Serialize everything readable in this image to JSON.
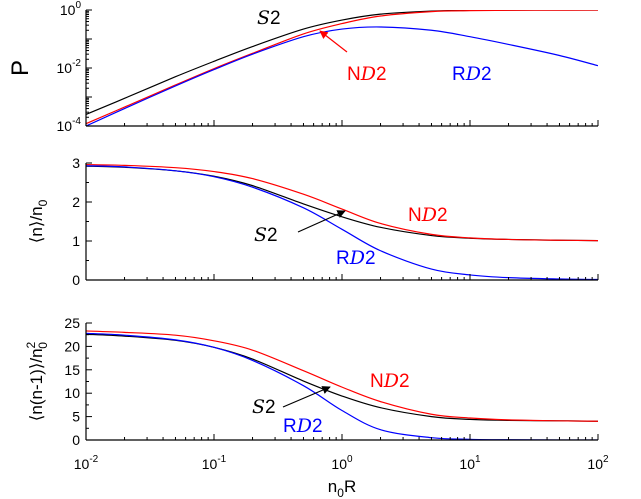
{
  "chart_data": [
    {
      "type": "line",
      "ylabel": "P",
      "y_scale": "log",
      "ylim": [
        0.0001,
        1
      ],
      "y_ticks": [
        {
          "value": 0.0001,
          "base": "10",
          "exp": "-4"
        },
        {
          "value": 0.01,
          "base": "10",
          "exp": "-2"
        },
        {
          "value": 1,
          "base": "10",
          "exp": "0"
        }
      ],
      "series": [
        {
          "name": "S2",
          "color": "#000000",
          "x": [
            0.01,
            0.02,
            0.05,
            0.1,
            0.2,
            0.5,
            1,
            2,
            5,
            10,
            20,
            50,
            100
          ],
          "y": [
            0.00025,
            0.0009,
            0.005,
            0.017,
            0.055,
            0.22,
            0.45,
            0.72,
            0.92,
            0.97,
            0.99,
            0.995,
            1.0
          ]
        },
        {
          "name": "ND2",
          "color": "#ff0000",
          "x": [
            0.01,
            0.02,
            0.05,
            0.1,
            0.2,
            0.5,
            1,
            2,
            5,
            10,
            20,
            50,
            100
          ],
          "y": [
            0.00012,
            0.00045,
            0.0026,
            0.0095,
            0.032,
            0.15,
            0.34,
            0.62,
            0.88,
            0.95,
            0.98,
            0.99,
            1.0
          ]
        },
        {
          "name": "RD2",
          "color": "#0000ff",
          "x": [
            0.01,
            0.02,
            0.05,
            0.1,
            0.2,
            0.5,
            1,
            2,
            5,
            10,
            20,
            50,
            100
          ],
          "y": [
            0.0001,
            0.0004,
            0.0024,
            0.0088,
            0.03,
            0.12,
            0.22,
            0.26,
            0.2,
            0.12,
            0.065,
            0.027,
            0.012
          ]
        }
      ],
      "annotations": [
        {
          "series": "S2",
          "text": "S2",
          "color": "#000000"
        },
        {
          "series": "ND2",
          "text": "ND2",
          "color": "#ff0000"
        },
        {
          "series": "RD2",
          "text": "RD2",
          "color": "#0000ff"
        }
      ]
    },
    {
      "type": "line",
      "ylabel": "⟨n⟩/n0",
      "y_scale": "linear",
      "ylim": [
        0,
        3
      ],
      "y_ticks": [
        {
          "value": 0,
          "label": "0"
        },
        {
          "value": 1,
          "label": "1"
        },
        {
          "value": 2,
          "label": "2"
        },
        {
          "value": 3,
          "label": "3"
        }
      ],
      "series": [
        {
          "name": "S2",
          "color": "#000000",
          "x": [
            0.01,
            0.02,
            0.05,
            0.1,
            0.2,
            0.5,
            1,
            2,
            5,
            10,
            20,
            50,
            100
          ],
          "y": [
            2.92,
            2.89,
            2.8,
            2.66,
            2.42,
            1.95,
            1.62,
            1.35,
            1.14,
            1.07,
            1.04,
            1.02,
            1.01
          ]
        },
        {
          "name": "ND2",
          "color": "#ff0000",
          "x": [
            0.01,
            0.02,
            0.05,
            0.1,
            0.2,
            0.5,
            1,
            2,
            5,
            10,
            20,
            50,
            100
          ],
          "y": [
            2.96,
            2.94,
            2.88,
            2.78,
            2.6,
            2.2,
            1.82,
            1.45,
            1.17,
            1.08,
            1.04,
            1.02,
            1.01
          ]
        },
        {
          "name": "RD2",
          "color": "#0000ff",
          "x": [
            0.01,
            0.02,
            0.05,
            0.1,
            0.2,
            0.5,
            1,
            2,
            5,
            10,
            20,
            50,
            100
          ],
          "y": [
            2.93,
            2.9,
            2.8,
            2.65,
            2.38,
            1.85,
            1.3,
            0.75,
            0.28,
            0.13,
            0.06,
            0.025,
            0.012
          ]
        }
      ],
      "annotations": [
        {
          "series": "S2",
          "text": "S2",
          "color": "#000000"
        },
        {
          "series": "ND2",
          "text": "ND2",
          "color": "#ff0000"
        },
        {
          "series": "RD2",
          "text": "RD2",
          "color": "#0000ff"
        }
      ]
    },
    {
      "type": "line",
      "ylabel": "⟨n(n-1)⟩/n0²",
      "xlabel": "n0R",
      "x_scale": "log",
      "xlim": [
        0.01,
        100
      ],
      "x_ticks": [
        {
          "value": 0.01,
          "base": "10",
          "exp": "-2"
        },
        {
          "value": 0.1,
          "base": "10",
          "exp": "-1"
        },
        {
          "value": 1,
          "base": "10",
          "exp": "0"
        },
        {
          "value": 10,
          "base": "10",
          "exp": "1"
        },
        {
          "value": 100,
          "base": "10",
          "exp": "2"
        }
      ],
      "y_scale": "linear",
      "ylim": [
        0,
        25
      ],
      "y_ticks": [
        {
          "value": 0,
          "label": "0"
        },
        {
          "value": 5,
          "label": "5"
        },
        {
          "value": 10,
          "label": "10"
        },
        {
          "value": 15,
          "label": "15"
        },
        {
          "value": 20,
          "label": "20"
        },
        {
          "value": 25,
          "label": "25"
        }
      ],
      "series": [
        {
          "name": "S2",
          "color": "#000000",
          "x": [
            0.01,
            0.02,
            0.05,
            0.1,
            0.2,
            0.5,
            1,
            2,
            5,
            10,
            20,
            50,
            100
          ],
          "y": [
            22.6,
            22.2,
            21.3,
            19.8,
            17.3,
            12.6,
            9.4,
            6.9,
            5.0,
            4.4,
            4.2,
            4.1,
            4.0
          ]
        },
        {
          "name": "ND2",
          "color": "#ff0000",
          "x": [
            0.01,
            0.02,
            0.05,
            0.1,
            0.2,
            0.5,
            1,
            2,
            5,
            10,
            20,
            50,
            100
          ],
          "y": [
            23.3,
            23.0,
            22.4,
            21.2,
            19.2,
            14.8,
            11.3,
            8.2,
            5.5,
            4.7,
            4.3,
            4.1,
            4.0
          ]
        },
        {
          "name": "RD2",
          "color": "#0000ff",
          "x": [
            0.01,
            0.02,
            0.05,
            0.1,
            0.2,
            0.5,
            1,
            2,
            5,
            10,
            20,
            50,
            100
          ],
          "y": [
            22.8,
            22.4,
            21.4,
            19.8,
            17.0,
            11.6,
            6.3,
            2.2,
            0.5,
            0.15,
            0.05,
            0.01,
            0.0
          ]
        }
      ],
      "annotations": [
        {
          "series": "S2",
          "text": "S2",
          "color": "#000000"
        },
        {
          "series": "ND2",
          "text": "ND2",
          "color": "#ff0000"
        },
        {
          "series": "RD2",
          "text": "RD2",
          "color": "#0000ff"
        }
      ]
    }
  ]
}
